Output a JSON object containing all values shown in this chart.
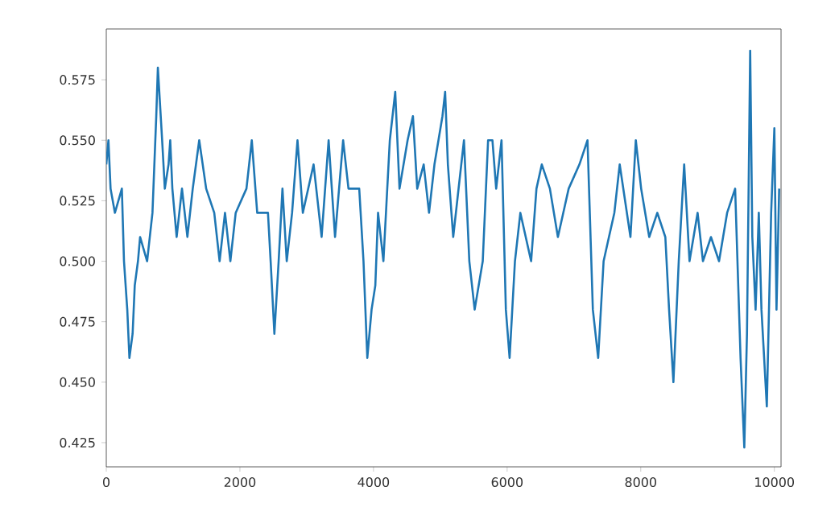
{
  "chart_data": {
    "type": "line",
    "color": "#1f77b4",
    "xlim": [
      0,
      10100
    ],
    "ylim": [
      0.415,
      0.596
    ],
    "xticks": [
      0,
      2000,
      4000,
      6000,
      8000,
      10000
    ],
    "yticks": [
      0.425,
      {
        "value": 0.45,
        "label": "0.450"
      },
      {
        "value": 0.475,
        "label": "0.475"
      },
      {
        "value": 0.5,
        "label": "0.500"
      },
      0.525,
      {
        "value": 0.55,
        "label": "0.550"
      },
      0.575
    ],
    "x": [
      0,
      32,
      64,
      129,
      233,
      265,
      314,
      346,
      394,
      426,
      474,
      506,
      611,
      691,
      748,
      772,
      836,
      876,
      932,
      957,
      989,
      1053,
      1133,
      1214,
      1294,
      1391,
      1495,
      1616,
      1696,
      1777,
      1857,
      1937,
      2098,
      2178,
      2259,
      2420,
      2460,
      2516,
      2580,
      2637,
      2701,
      2781,
      2862,
      2942,
      3103,
      3223,
      3328,
      3424,
      3545,
      3625,
      3786,
      3850,
      3907,
      3971,
      4027,
      4068,
      4148,
      4244,
      4325,
      4389,
      4510,
      4590,
      4654,
      4751,
      4831,
      4912,
      5032,
      5072,
      5113,
      5193,
      5273,
      5354,
      5434,
      5514,
      5635,
      5715,
      5780,
      5836,
      5916,
      5981,
      6037,
      6117,
      6198,
      6359,
      6439,
      6519,
      6640,
      6760,
      6921,
      7082,
      7203,
      7283,
      7363,
      7444,
      7524,
      7605,
      7685,
      7846,
      7926,
      8006,
      8127,
      8248,
      8368,
      8424,
      8489,
      8569,
      8650,
      8730,
      8851,
      8931,
      9051,
      9172,
      9293,
      9413,
      9494,
      9550,
      9590,
      9638,
      9670,
      9719,
      9767,
      9807,
      9887,
      9952,
      10000,
      10032,
      10072
    ],
    "values": [
      0.54,
      0.55,
      0.53,
      0.52,
      0.53,
      0.5,
      0.48,
      0.46,
      0.47,
      0.49,
      0.5,
      0.51,
      0.5,
      0.52,
      0.56,
      0.58,
      0.55,
      0.53,
      0.54,
      0.55,
      0.53,
      0.51,
      0.53,
      0.51,
      0.53,
      0.55,
      0.53,
      0.52,
      0.5,
      0.52,
      0.5,
      0.52,
      0.53,
      0.55,
      0.52,
      0.52,
      0.5,
      0.47,
      0.5,
      0.53,
      0.5,
      0.52,
      0.55,
      0.52,
      0.54,
      0.51,
      0.55,
      0.51,
      0.55,
      0.53,
      0.53,
      0.5,
      0.46,
      0.48,
      0.49,
      0.52,
      0.5,
      0.55,
      0.57,
      0.53,
      0.55,
      0.56,
      0.53,
      0.54,
      0.52,
      0.54,
      0.56,
      0.57,
      0.54,
      0.51,
      0.53,
      0.55,
      0.5,
      0.48,
      0.5,
      0.55,
      0.55,
      0.53,
      0.55,
      0.48,
      0.46,
      0.5,
      0.52,
      0.5,
      0.53,
      0.54,
      0.53,
      0.51,
      0.53,
      0.54,
      0.55,
      0.48,
      0.46,
      0.5,
      0.51,
      0.52,
      0.54,
      0.51,
      0.55,
      0.53,
      0.51,
      0.52,
      0.51,
      0.48,
      0.45,
      0.5,
      0.54,
      0.5,
      0.52,
      0.5,
      0.51,
      0.5,
      0.52,
      0.53,
      0.46,
      0.423,
      0.47,
      0.587,
      0.51,
      0.48,
      0.52,
      0.48,
      0.44,
      0.52,
      0.555,
      0.48,
      0.53
    ]
  }
}
